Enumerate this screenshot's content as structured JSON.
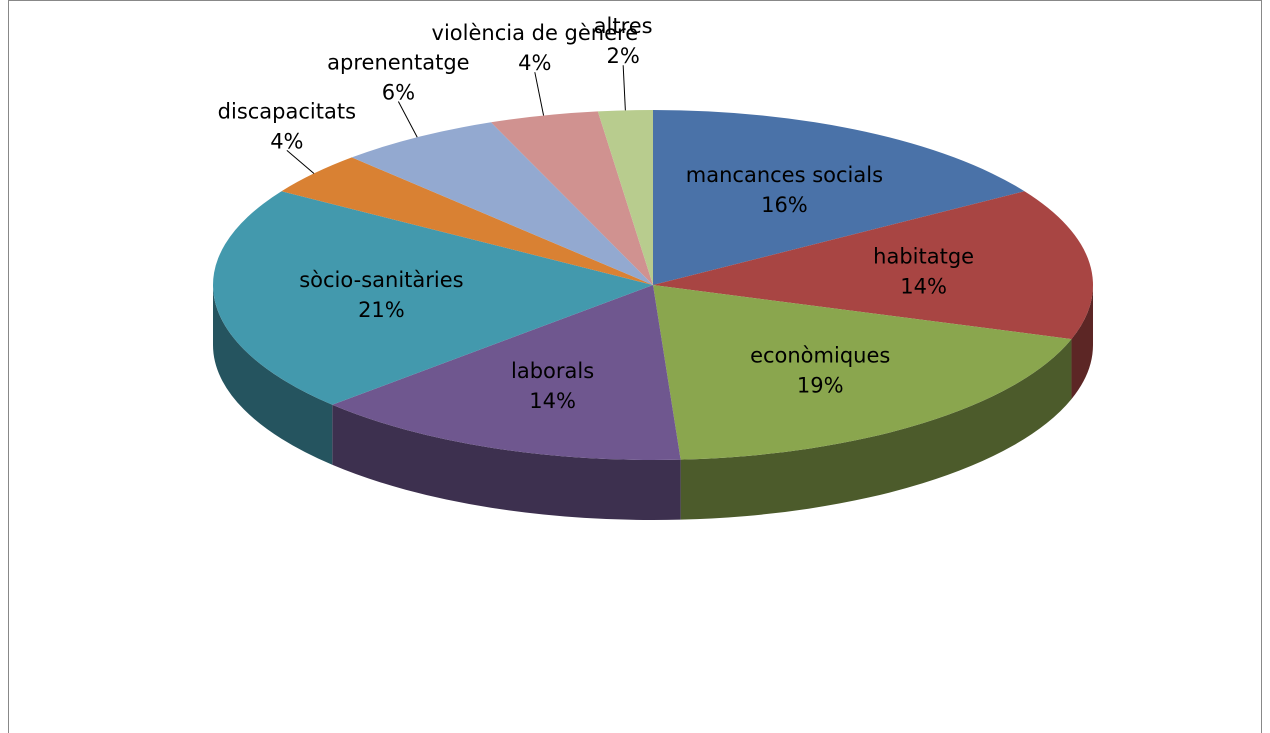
{
  "chart_data": {
    "type": "pie",
    "categories": [
      "mancances socials",
      "habitatge",
      "econòmiques",
      "laborals",
      "sòcio-sanitàries",
      "discapacitats",
      "aprenentatge",
      "violència de gènere",
      "altres"
    ],
    "values": [
      16,
      14,
      19,
      14,
      21,
      4,
      6,
      4,
      2
    ],
    "value_labels": [
      "16%",
      "14%",
      "19%",
      "14%",
      "21%",
      "4%",
      "6%",
      "4%",
      "2%"
    ],
    "colors": [
      "#4a72a8",
      "#a84543",
      "#8aa64e",
      "#6f578f",
      "#4399ad",
      "#d98133",
      "#93a9d0",
      "#d09290",
      "#b8cc8e"
    ]
  }
}
